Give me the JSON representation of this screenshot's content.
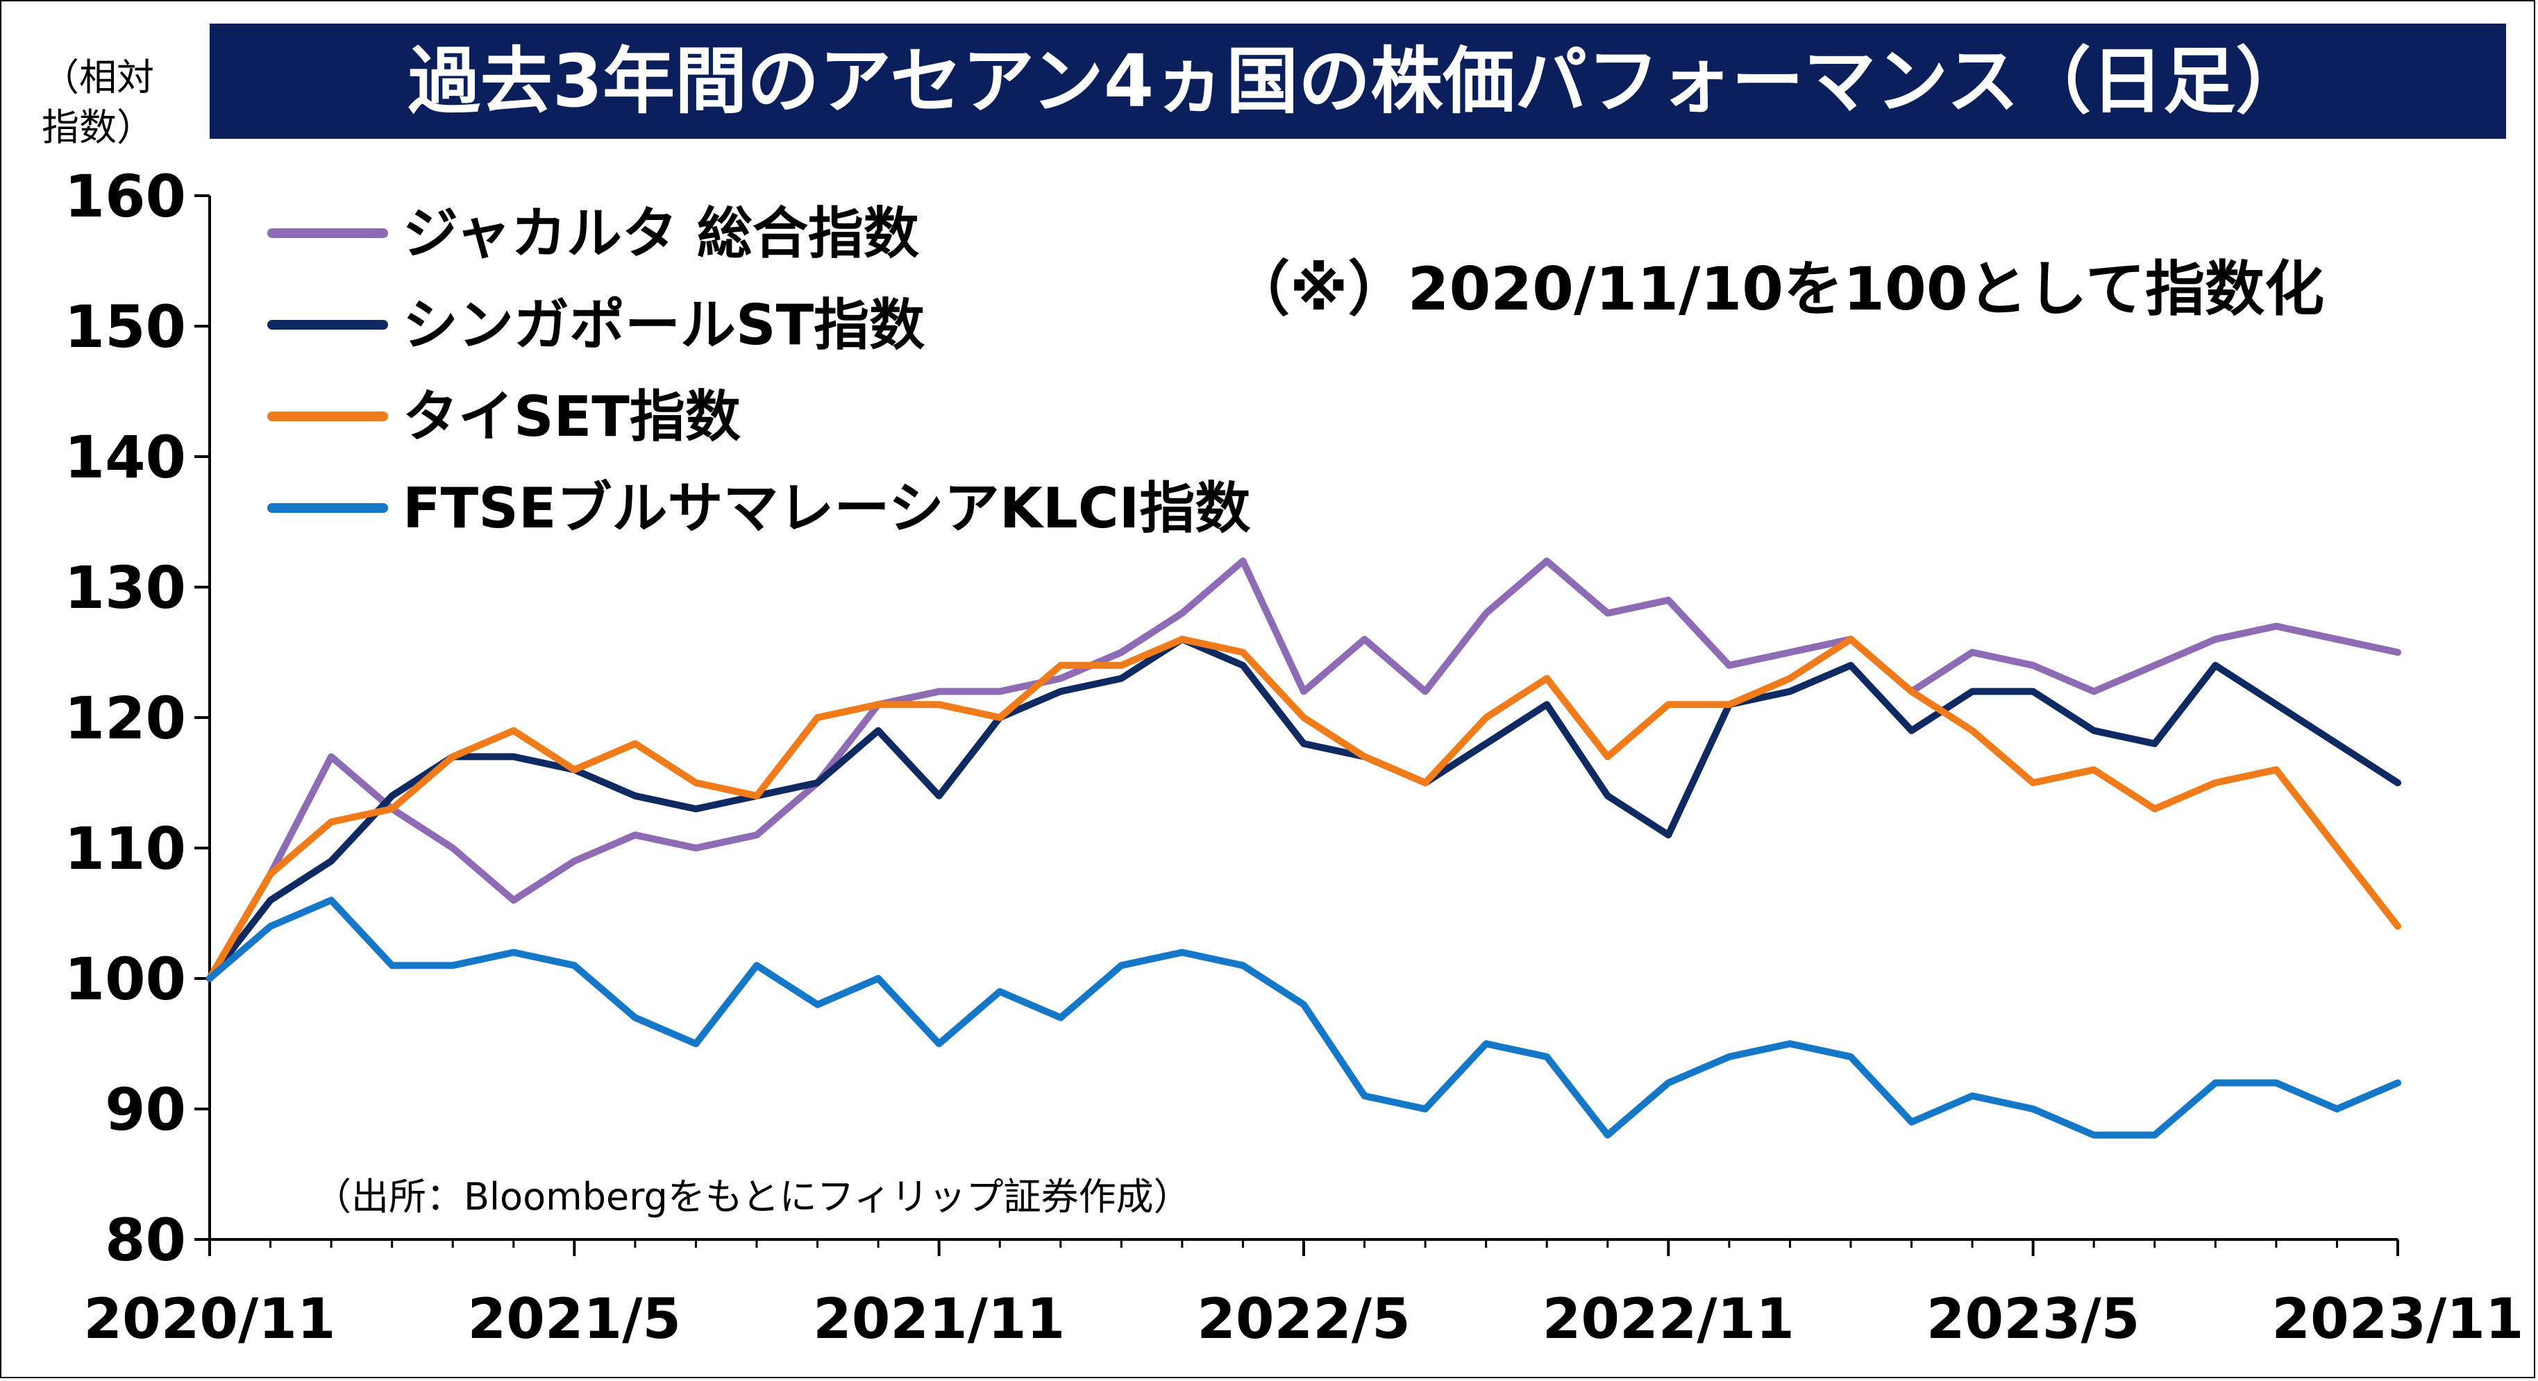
{
  "title": "過去3年間のアセアン4ヵ国の株価パフォーマンス（日足）",
  "note": "（※）2020/11/10を100として指数化",
  "source": "（出所：Bloombergをもとにフィリップ証券作成）",
  "chart_data": {
    "type": "line",
    "ylabel": "（相対指数）",
    "ylabel_lines": [
      "（相対",
      "指数）"
    ],
    "ylim": [
      80,
      160
    ],
    "yticks": [
      "160",
      "150",
      "140",
      "130",
      "120",
      "110",
      "100",
      "90",
      "80"
    ],
    "xticks": [
      "2020/11",
      "2021/5",
      "2021/11",
      "2022/5",
      "2022/11",
      "2023/5",
      "2023/11"
    ],
    "x": [
      "2020/11",
      "2020/12",
      "2021/1",
      "2021/2",
      "2021/3",
      "2021/4",
      "2021/5",
      "2021/6",
      "2021/7",
      "2021/8",
      "2021/9",
      "2021/10",
      "2021/11",
      "2021/12",
      "2022/1",
      "2022/2",
      "2022/3",
      "2022/4",
      "2022/5",
      "2022/6",
      "2022/7",
      "2022/8",
      "2022/9",
      "2022/10",
      "2022/11",
      "2022/12",
      "2023/1",
      "2023/2",
      "2023/3",
      "2023/4",
      "2023/5",
      "2023/6",
      "2023/7",
      "2023/8",
      "2023/9",
      "2023/10",
      "2023/11"
    ],
    "legend_position": "top-left",
    "series": [
      {
        "name": "ジャカルタ 総合指数",
        "color": "#8e6bb5",
        "values": [
          100,
          108,
          117,
          113,
          110,
          106,
          109,
          111,
          110,
          111,
          115,
          121,
          122,
          122,
          123,
          125,
          128,
          132,
          122,
          126,
          122,
          128,
          132,
          128,
          129,
          124,
          125,
          126,
          122,
          125,
          124,
          122,
          124,
          126,
          127,
          126,
          125
        ]
      },
      {
        "name": "シンガポールST指数",
        "color": "#0f2a63",
        "values": [
          100,
          106,
          109,
          114,
          117,
          117,
          116,
          114,
          113,
          114,
          115,
          119,
          114,
          120,
          122,
          123,
          126,
          124,
          118,
          117,
          115,
          118,
          121,
          114,
          111,
          121,
          122,
          124,
          119,
          122,
          122,
          119,
          118,
          124,
          121,
          118,
          115
        ]
      },
      {
        "name": "タイSET指数",
        "color": "#f07b1a",
        "values": [
          100,
          108,
          112,
          113,
          117,
          119,
          116,
          118,
          115,
          114,
          120,
          121,
          121,
          120,
          124,
          124,
          126,
          125,
          120,
          117,
          115,
          120,
          123,
          117,
          121,
          121,
          123,
          126,
          122,
          119,
          115,
          116,
          113,
          115,
          116,
          110,
          104
        ]
      },
      {
        "name": "FTSEブルサマレーシアKLCI指数",
        "color": "#1577c8",
        "values": [
          100,
          104,
          106,
          101,
          101,
          102,
          101,
          97,
          95,
          101,
          98,
          100,
          95,
          99,
          97,
          101,
          102,
          101,
          98,
          91,
          90,
          95,
          94,
          88,
          92,
          94,
          95,
          94,
          89,
          91,
          90,
          88,
          88,
          92,
          92,
          90,
          92
        ]
      }
    ]
  }
}
